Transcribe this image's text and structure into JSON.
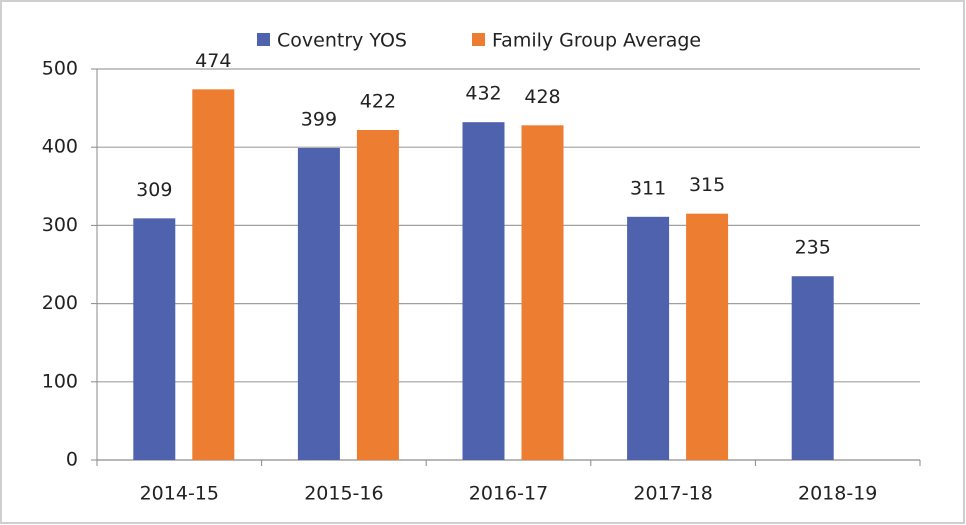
{
  "chart_data": {
    "type": "bar",
    "categories": [
      "2014-15",
      "2015-16",
      "2016-17",
      "2017-18",
      "2018-19"
    ],
    "series": [
      {
        "name": "Coventry YOS",
        "color": "#4f62ad",
        "values": [
          309,
          399,
          432,
          311,
          235
        ]
      },
      {
        "name": "Family Group Average",
        "color": "#ed7d31",
        "values": [
          474,
          422,
          428,
          315,
          null
        ]
      }
    ],
    "ylim": [
      0,
      500
    ],
    "yticks": [
      0,
      100,
      200,
      300,
      400,
      500
    ],
    "grid": true,
    "legend": "top"
  }
}
